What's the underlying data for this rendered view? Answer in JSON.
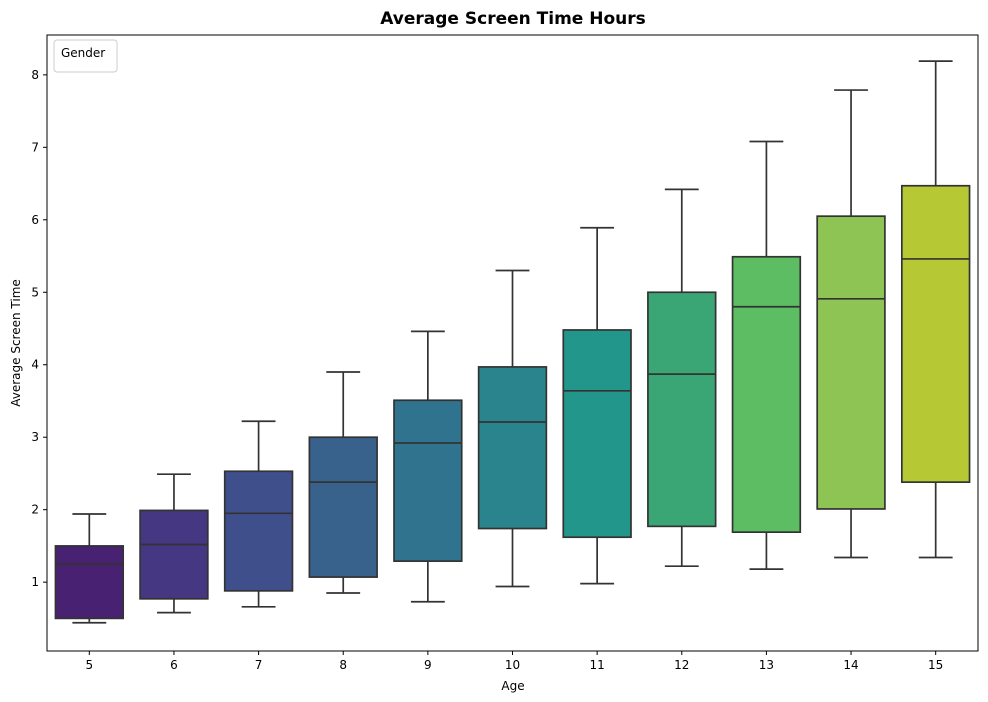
{
  "chart_data": {
    "type": "box",
    "title": "Average Screen Time Hours",
    "xlabel": "Age",
    "ylabel": "Average Screen Time",
    "ylim": [
      0.05,
      8.55
    ],
    "yticks": [
      1,
      2,
      3,
      4,
      5,
      6,
      7,
      8
    ],
    "legend": {
      "title": "Gender",
      "placement": "top-left"
    },
    "grid": false,
    "categories": [
      "5",
      "6",
      "7",
      "8",
      "9",
      "10",
      "11",
      "12",
      "13",
      "14",
      "15"
    ],
    "boxes": [
      {
        "category": "5",
        "whisker_low": 0.44,
        "q1": 0.5,
        "median": 1.25,
        "q3": 1.5,
        "whisker_high": 1.94,
        "color": "#482173"
      },
      {
        "category": "6",
        "whisker_low": 0.58,
        "q1": 0.77,
        "median": 1.52,
        "q3": 1.99,
        "whisker_high": 2.49,
        "color": "#453781"
      },
      {
        "category": "7",
        "whisker_low": 0.66,
        "q1": 0.88,
        "median": 1.95,
        "q3": 2.53,
        "whisker_high": 3.22,
        "color": "#3f4f8b"
      },
      {
        "category": "8",
        "whisker_low": 0.85,
        "q1": 1.07,
        "median": 2.38,
        "q3": 3.0,
        "whisker_high": 3.9,
        "color": "#38618c"
      },
      {
        "category": "9",
        "whisker_low": 0.73,
        "q1": 1.29,
        "median": 2.92,
        "q3": 3.51,
        "whisker_high": 4.46,
        "color": "#2f738e"
      },
      {
        "category": "10",
        "whisker_low": 0.94,
        "q1": 1.74,
        "median": 3.21,
        "q3": 3.97,
        "whisker_high": 5.3,
        "color": "#2a848e"
      },
      {
        "category": "11",
        "whisker_low": 0.98,
        "q1": 1.62,
        "median": 3.64,
        "q3": 4.48,
        "whisker_high": 5.89,
        "color": "#22968b"
      },
      {
        "category": "12",
        "whisker_low": 1.22,
        "q1": 1.77,
        "median": 3.87,
        "q3": 5.0,
        "whisker_high": 6.42,
        "color": "#3ba675"
      },
      {
        "category": "13",
        "whisker_low": 1.18,
        "q1": 1.69,
        "median": 4.8,
        "q3": 5.49,
        "whisker_high": 7.08,
        "color": "#5cbd63"
      },
      {
        "category": "14",
        "whisker_low": 1.34,
        "q1": 2.01,
        "median": 4.91,
        "q3": 6.05,
        "whisker_high": 7.79,
        "color": "#8dc453"
      },
      {
        "category": "15",
        "whisker_low": 1.34,
        "q1": 2.38,
        "median": 5.46,
        "q3": 6.47,
        "whisker_high": 8.19,
        "color": "#b6c935"
      }
    ]
  }
}
